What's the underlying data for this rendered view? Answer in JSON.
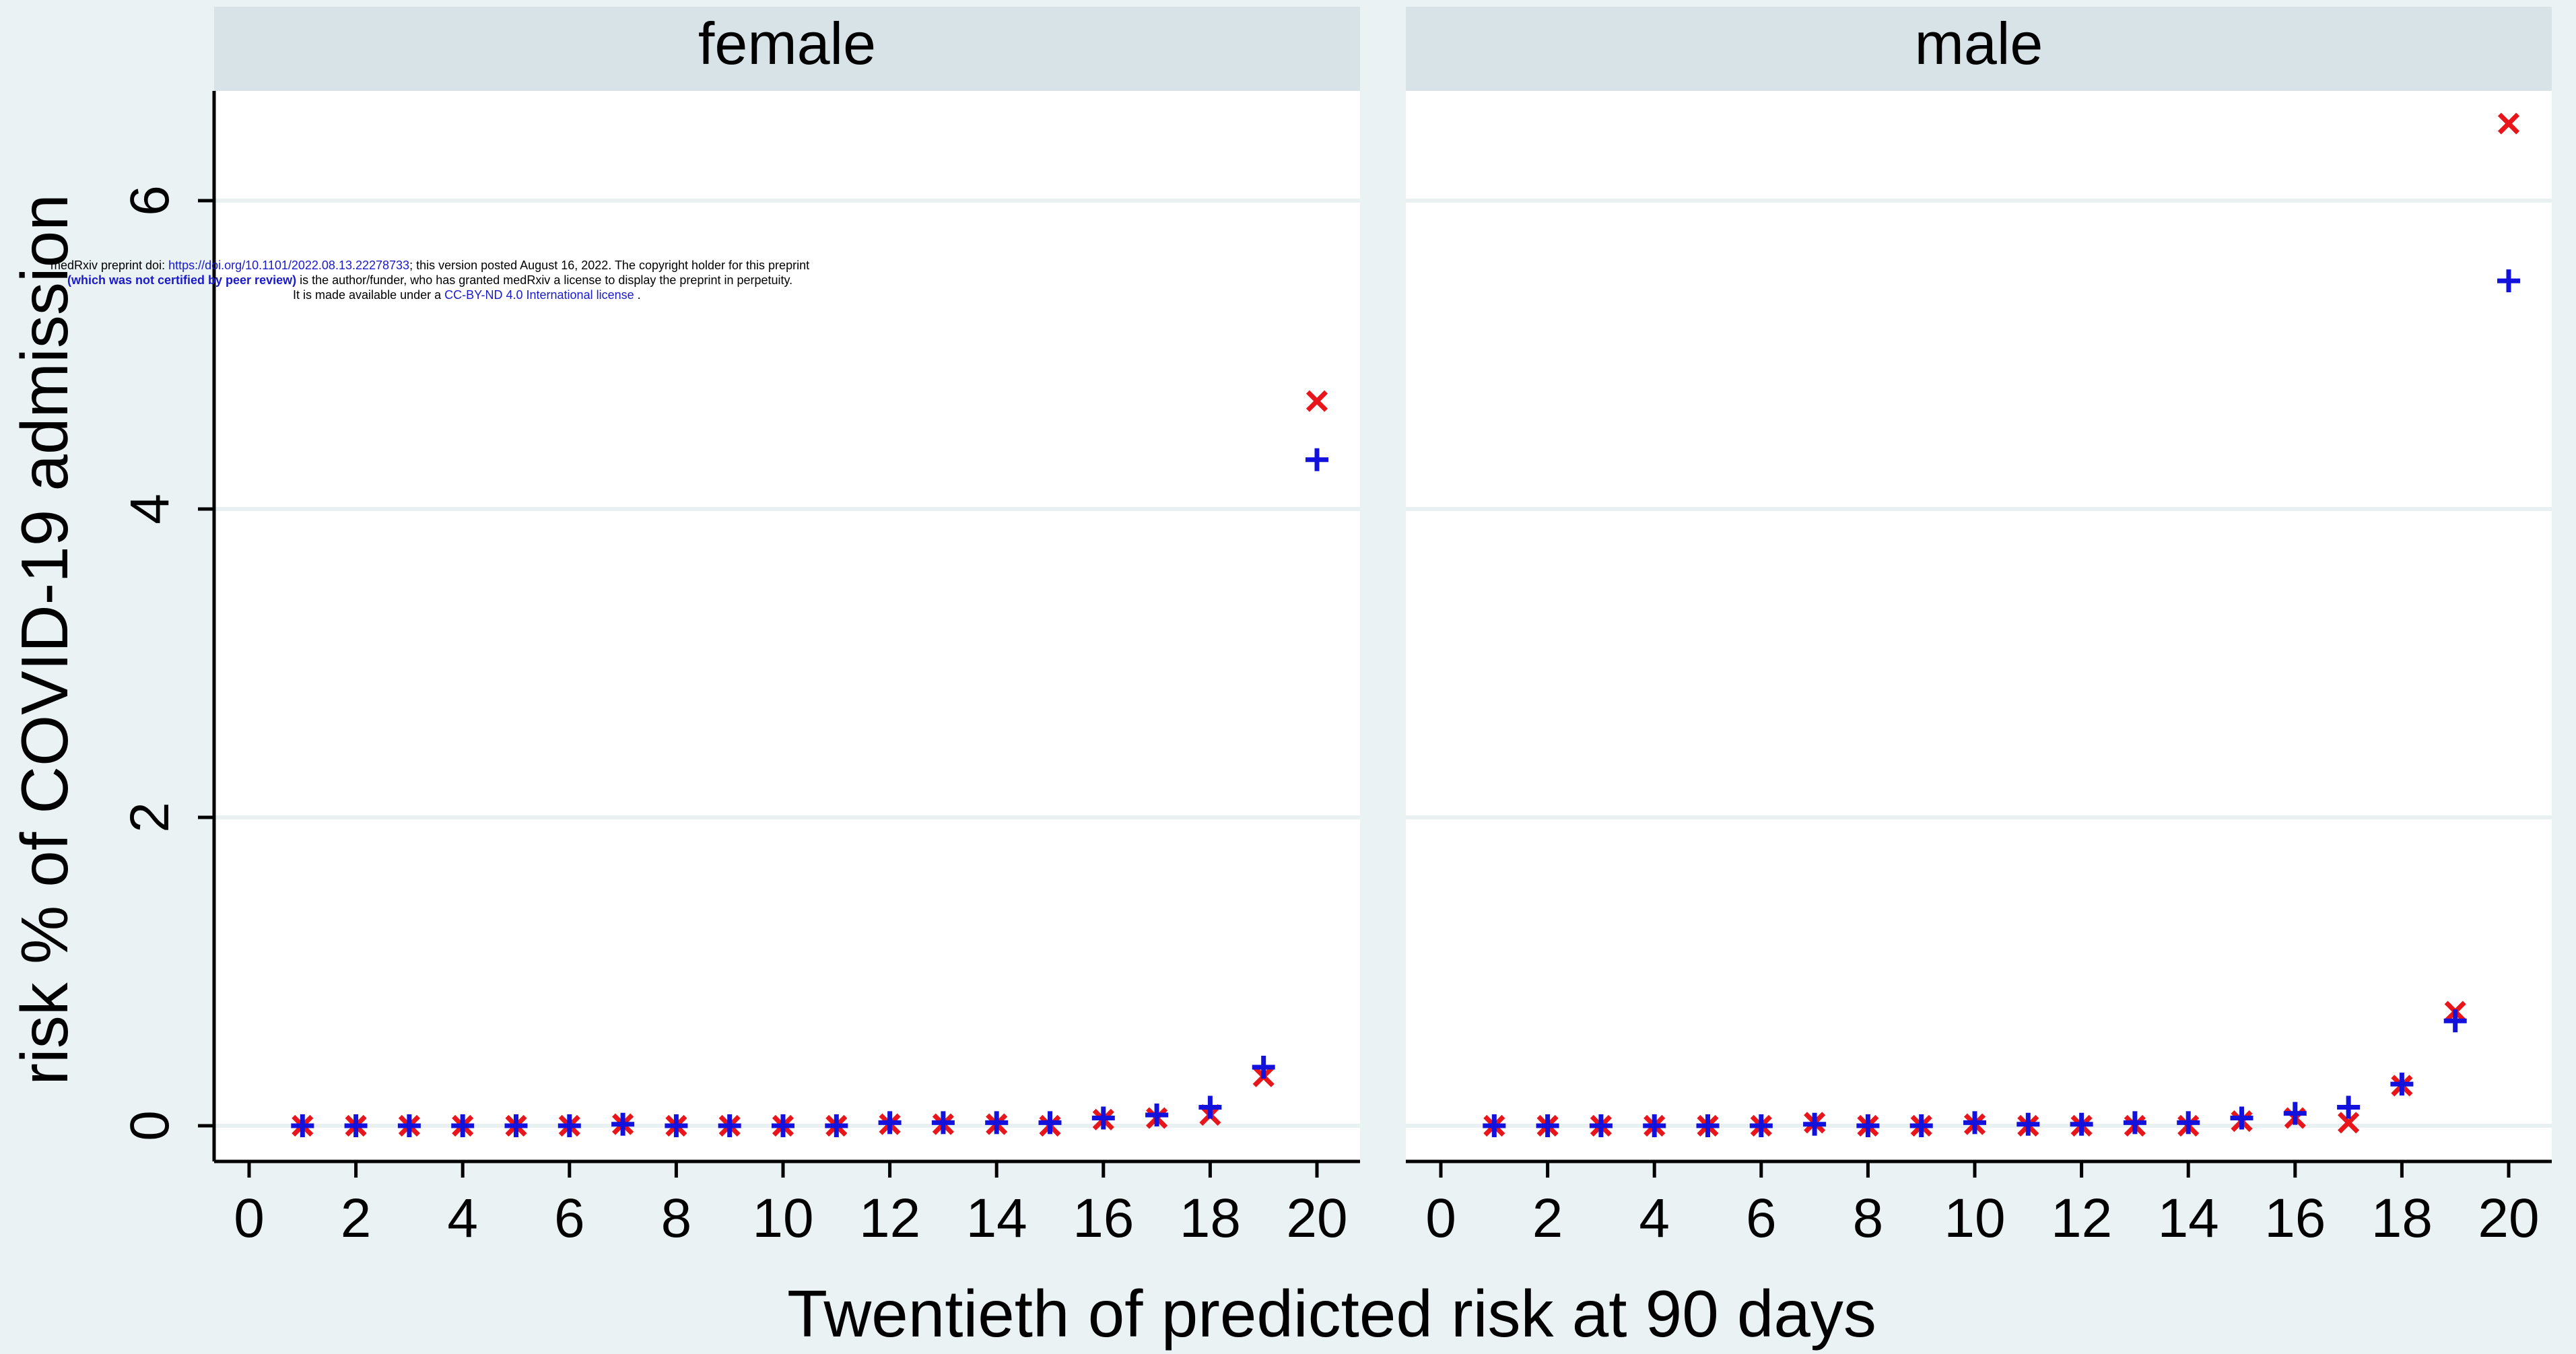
{
  "chart_data": {
    "type": "scatter",
    "ylabel": "risk % of COVID-19 admission",
    "xlabel": "Twentieth of predicted risk at 90 days",
    "xlim": [
      0,
      20
    ],
    "ylim": [
      0,
      6.6
    ],
    "xticks": [
      "0",
      "2",
      "4",
      "6",
      "8",
      "10",
      "12",
      "14",
      "16",
      "18",
      "20"
    ],
    "yticks": [
      "0",
      "2",
      "4",
      "6"
    ],
    "ytick_values": [
      0,
      2,
      4,
      6
    ],
    "grid": true,
    "colors": {
      "cross": "#e8161b",
      "plus": "#1212dc"
    },
    "panels": [
      {
        "title": "female",
        "x": [
          1,
          2,
          3,
          4,
          5,
          6,
          7,
          8,
          9,
          10,
          11,
          12,
          13,
          14,
          15,
          16,
          17,
          18,
          19,
          20
        ],
        "series": [
          {
            "marker": "x",
            "values": [
              0,
              0,
              0,
              0,
              0,
              0,
              0.01,
              0,
              0,
              0,
              0,
              0.01,
              0.01,
              0.01,
              0,
              0.04,
              0.05,
              0.07,
              0.32,
              4.7
            ]
          },
          {
            "marker": "+",
            "values": [
              0,
              0,
              0,
              0,
              0,
              0,
              0.01,
              0,
              0,
              0,
              0,
              0.02,
              0.02,
              0.02,
              0.02,
              0.05,
              0.07,
              0.12,
              0.38,
              4.32
            ]
          }
        ]
      },
      {
        "title": "male",
        "x": [
          1,
          2,
          3,
          4,
          5,
          6,
          7,
          8,
          9,
          10,
          11,
          12,
          13,
          14,
          15,
          16,
          17,
          18,
          19,
          20
        ],
        "series": [
          {
            "marker": "x",
            "values": [
              0,
              0,
              0,
              0,
              0,
              0,
              0.02,
              0,
              0,
              0.01,
              0,
              0,
              0,
              0,
              0.03,
              0.05,
              0.02,
              0.26,
              0.74,
              6.5
            ]
          },
          {
            "marker": "+",
            "values": [
              0,
              0,
              0,
              0,
              0,
              0,
              0.01,
              0,
              0,
              0.02,
              0.01,
              0.01,
              0.02,
              0.02,
              0.05,
              0.08,
              0.12,
              0.27,
              0.68,
              5.48
            ]
          }
        ]
      }
    ]
  },
  "preprint_notice": {
    "line1_pre": "medRxiv preprint doi: ",
    "line1_link": "https://doi.org/10.1101/2022.08.13.22278733",
    "line1_post": "; this version posted August 16, 2022. The copyright holder for this preprint",
    "line2_bold": "(which was not certified by peer review)",
    "line2_post": " is the author/funder, who has granted medRxiv a license to display the preprint in perpetuity.",
    "line3_pre": "It is made available under a ",
    "line3_link": "CC-BY-ND 4.0 International license",
    "line3_post": " ."
  }
}
